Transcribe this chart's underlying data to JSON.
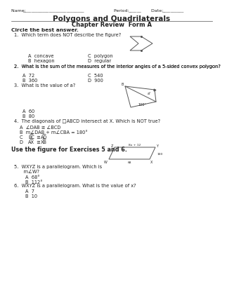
{
  "title": "Polygons and Quadrilaterals",
  "subtitle": "Chapter Review  Form A",
  "header_label": "Circle the best answer.",
  "q1": "1.  Which term does NOT describe the figure?",
  "q1_choices": [
    [
      "A  concave",
      "C  polygon"
    ],
    [
      "B  hexagon",
      "D  regular"
    ]
  ],
  "q2": "2.  What is the sum of the measures of the interior angles of a 5-sided convex polygon?",
  "q2_choices": [
    [
      "A  72",
      "C  540"
    ],
    [
      "B  360",
      "D  900"
    ]
  ],
  "q3": "3.  What is the value of a?",
  "q3_choices": [
    "A  60",
    "B  80"
  ],
  "q4": "4.  The diagonals of □ABCD intersect at X. Which is NOT true?",
  "q4a": "A  ∠DAB ≅ ∠BCD",
  "q4b": "B  m∠DAB + m∠CBA = 180°",
  "q4c": "C  BC ≅ AD",
  "q4d": "D  AX ≅ XB",
  "q5_header": "Use the figure for Exercises 5 and 6.",
  "q5a": "5.  WXYZ is a parallelogram. Which is",
  "q5b": "    m∠W?",
  "q5_choices": [
    "A  68°",
    "B  112°"
  ],
  "q6": "6.  WXYZ is a parallelogram. What is the value of x?",
  "q6_choices": [
    "A  7",
    "B  10"
  ],
  "bg_color": "#ffffff",
  "text_color": "#222222",
  "fs": 4.8
}
